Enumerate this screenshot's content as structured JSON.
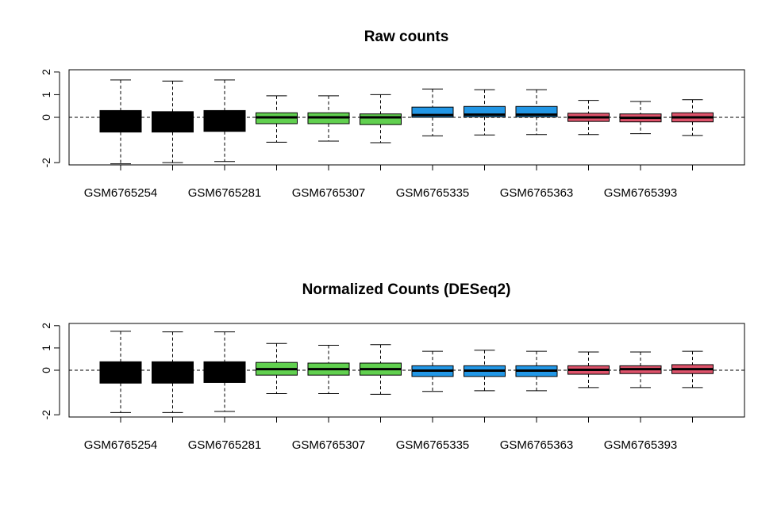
{
  "chart_data": [
    {
      "type": "boxplot",
      "title": "Raw counts",
      "xlabel": "",
      "ylabel": "",
      "ylim": [
        -2.1,
        2.1
      ],
      "y_ticks": [
        -2,
        0,
        1,
        2
      ],
      "reference_line": 0,
      "grid": false,
      "categories": [
        "GSM6765254",
        "",
        "GSM6765281",
        "",
        "GSM6765307",
        "",
        "GSM6765335",
        "",
        "GSM6765363",
        "",
        "GSM6765393",
        ""
      ],
      "colors": [
        "#000000",
        "#000000",
        "#000000",
        "#61d04f",
        "#61d04f",
        "#61d04f",
        "#2297e6",
        "#2297e6",
        "#2297e6",
        "#df536b",
        "#df536b",
        "#df536b"
      ],
      "boxes": [
        {
          "min": -2.05,
          "q1": -0.65,
          "median": -0.2,
          "q3": 0.3,
          "max": 1.65
        },
        {
          "min": -2.0,
          "q1": -0.65,
          "median": -0.2,
          "q3": 0.25,
          "max": 1.6
        },
        {
          "min": -1.95,
          "q1": -0.62,
          "median": -0.18,
          "q3": 0.3,
          "max": 1.65
        },
        {
          "min": -1.1,
          "q1": -0.28,
          "median": 0.0,
          "q3": 0.2,
          "max": 0.95
        },
        {
          "min": -1.05,
          "q1": -0.28,
          "median": 0.0,
          "q3": 0.2,
          "max": 0.95
        },
        {
          "min": -1.12,
          "q1": -0.32,
          "median": 0.0,
          "q3": 0.15,
          "max": 1.0
        },
        {
          "min": -0.82,
          "q1": 0.0,
          "median": 0.1,
          "q3": 0.45,
          "max": 1.25
        },
        {
          "min": -0.78,
          "q1": 0.02,
          "median": 0.12,
          "q3": 0.48,
          "max": 1.22
        },
        {
          "min": -0.76,
          "q1": 0.02,
          "median": 0.12,
          "q3": 0.48,
          "max": 1.22
        },
        {
          "min": -0.76,
          "q1": -0.18,
          "median": 0.0,
          "q3": 0.18,
          "max": 0.75
        },
        {
          "min": -0.72,
          "q1": -0.2,
          "median": -0.02,
          "q3": 0.15,
          "max": 0.7
        },
        {
          "min": -0.8,
          "q1": -0.2,
          "median": 0.0,
          "q3": 0.2,
          "max": 0.78
        }
      ]
    },
    {
      "type": "boxplot",
      "title": "Normalized Counts (DESeq2)",
      "xlabel": "",
      "ylabel": "",
      "ylim": [
        -2.1,
        2.1
      ],
      "y_ticks": [
        -2,
        0,
        1,
        2
      ],
      "reference_line": 0,
      "grid": false,
      "categories": [
        "GSM6765254",
        "",
        "GSM6765281",
        "",
        "GSM6765307",
        "",
        "GSM6765335",
        "",
        "GSM6765363",
        "",
        "GSM6765393",
        ""
      ],
      "colors": [
        "#000000",
        "#000000",
        "#000000",
        "#61d04f",
        "#61d04f",
        "#61d04f",
        "#2297e6",
        "#2297e6",
        "#2297e6",
        "#df536b",
        "#df536b",
        "#df536b"
      ],
      "boxes": [
        {
          "min": -1.9,
          "q1": -0.58,
          "median": -0.15,
          "q3": 0.38,
          "max": 1.75
        },
        {
          "min": -1.9,
          "q1": -0.58,
          "median": -0.15,
          "q3": 0.38,
          "max": 1.72
        },
        {
          "min": -1.85,
          "q1": -0.55,
          "median": -0.12,
          "q3": 0.38,
          "max": 1.72
        },
        {
          "min": -1.05,
          "q1": -0.22,
          "median": 0.05,
          "q3": 0.35,
          "max": 1.2
        },
        {
          "min": -1.05,
          "q1": -0.22,
          "median": 0.05,
          "q3": 0.32,
          "max": 1.12
        },
        {
          "min": -1.08,
          "q1": -0.22,
          "median": 0.05,
          "q3": 0.32,
          "max": 1.15
        },
        {
          "min": -0.95,
          "q1": -0.28,
          "median": -0.02,
          "q3": 0.2,
          "max": 0.85
        },
        {
          "min": -0.92,
          "q1": -0.28,
          "median": -0.02,
          "q3": 0.2,
          "max": 0.9
        },
        {
          "min": -0.92,
          "q1": -0.28,
          "median": -0.02,
          "q3": 0.2,
          "max": 0.85
        },
        {
          "min": -0.78,
          "q1": -0.18,
          "median": 0.02,
          "q3": 0.2,
          "max": 0.82
        },
        {
          "min": -0.78,
          "q1": -0.15,
          "median": 0.05,
          "q3": 0.2,
          "max": 0.82
        },
        {
          "min": -0.78,
          "q1": -0.15,
          "median": 0.05,
          "q3": 0.25,
          "max": 0.85
        }
      ]
    }
  ]
}
